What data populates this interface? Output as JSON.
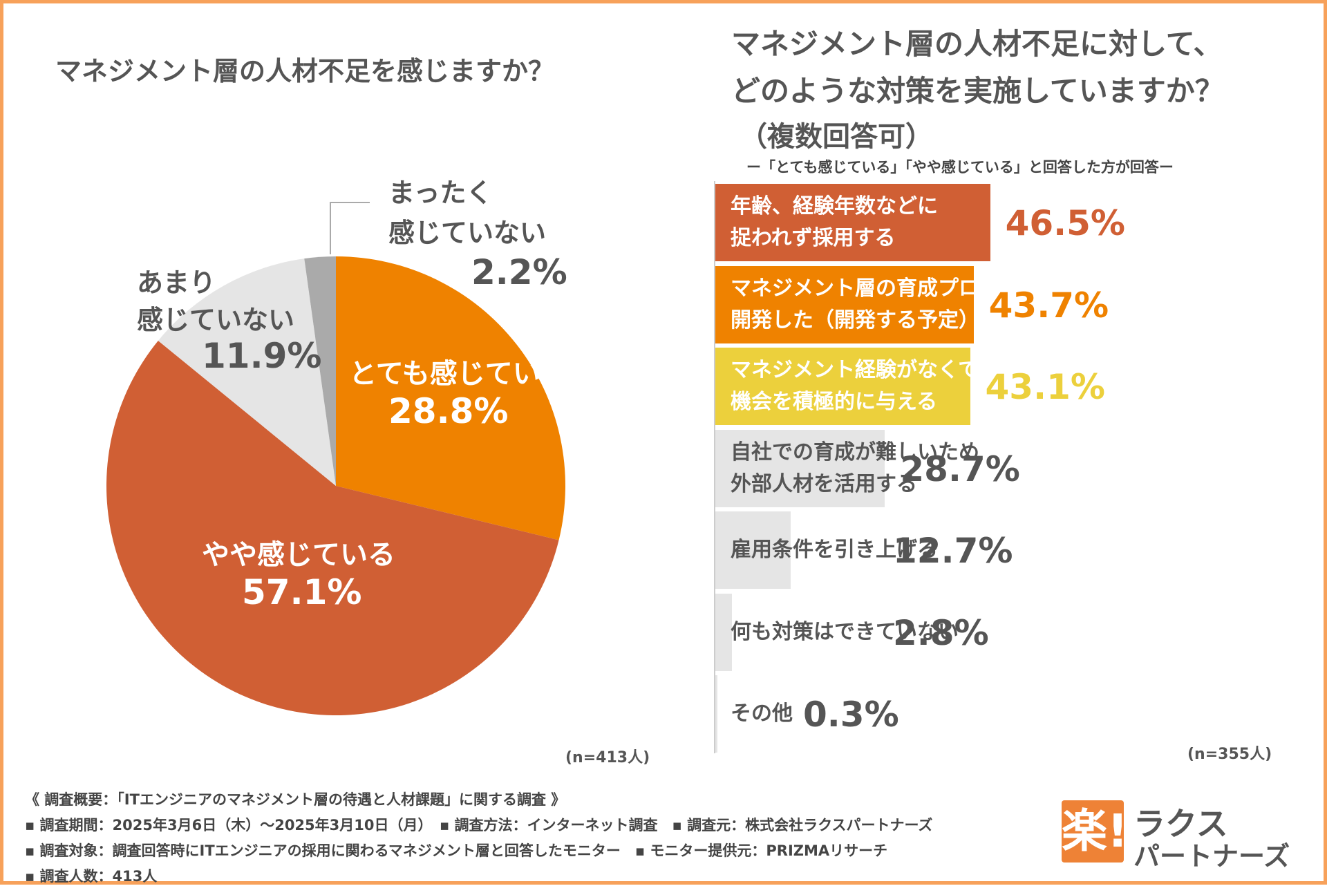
{
  "left": {
    "title": "マネジメント層の人材不足を感じますか？",
    "n_label": "(n=413人)"
  },
  "right": {
    "title_line1": "マネジメント層の人材不足に対して、",
    "title_line2": "どのような対策を実施していますか？",
    "title_line3": "（複数回答可）",
    "subtitle": "ー「とても感じている」「やや感じている」と回答した方が回答ー",
    "n_label": "(n=355人)"
  },
  "chart_data": [
    {
      "type": "pie",
      "title": "マネジメント層の人材不足を感じますか？",
      "slices": [
        {
          "label": "とても感じている",
          "value": 28.8,
          "value_label": "28.8%",
          "color": "#ef8200"
        },
        {
          "label": "やや感じている",
          "value": 57.1,
          "value_label": "57.1%",
          "color": "#d05f34"
        },
        {
          "label_line1": "あまり",
          "label_line2": "感じていない",
          "value": 11.9,
          "value_label": "11.9%",
          "color": "#e5e5e5"
        },
        {
          "label_line1": "まったく",
          "label_line2": "感じていない",
          "value": 2.2,
          "value_label": "2.2%",
          "color": "#aaaaaa"
        }
      ]
    },
    {
      "type": "bar",
      "orientation": "horizontal",
      "title": "マネジメント層の人材不足に対して、どのような対策を実施していますか？（複数回答可）",
      "bars": [
        {
          "label": "年齢、経験年数などに\n捉われず採用する",
          "value": 46.5,
          "value_label": "46.5%",
          "color": "#d05f34",
          "text_color": "#ffffff"
        },
        {
          "label": "マネジメント層の育成プログラムを\n開発した（開発する予定）",
          "value": 43.7,
          "value_label": "43.7%",
          "color": "#ef8200",
          "text_color": "#ffffff"
        },
        {
          "label": "マネジメント経験がなくても、\n機会を積極的に与える",
          "value": 43.1,
          "value_label": "43.1%",
          "color": "#ecd03c",
          "text_color": "#ffffff"
        },
        {
          "label": "自社での育成が難しいため\n外部人材を活用する",
          "value": 28.7,
          "value_label": "28.7%",
          "color": "#e5e5e5",
          "text_color": "#555555"
        },
        {
          "label": "雇用条件を引き上げる",
          "value": 12.7,
          "value_label": "12.7%",
          "color": "#e5e5e5",
          "text_color": "#555555"
        },
        {
          "label": "何も対策はできていない",
          "value": 2.8,
          "value_label": "2.8%",
          "color": "#e5e5e5",
          "text_color": "#555555"
        },
        {
          "label": "その他",
          "value": 0.3,
          "value_label": "0.3%",
          "color": "#e5e5e5",
          "text_color": "#555555"
        }
      ]
    }
  ],
  "footer": {
    "line1": "《 調査概要：「ITエンジニアのマネジメント層の待遇と人材課題」に関する調査 》",
    "line2": "▪ 調査期間：2025年3月6日（木）〜2025年3月10日（月）　▪ 調査方法：インターネット調査　▪ 調査元：株式会社ラクスパートナーズ",
    "line3": "▪ 調査対象：調査回答時にITエンジニアの採用に関わるマネジメント層と回答したモニター　▪ モニター提供元：PRIZMAリサーチ",
    "line4": "▪ 調査人数：413人"
  },
  "logo": {
    "mark": "楽!",
    "name_line1": "ラクス",
    "name_line2": "パートナーズ"
  },
  "colors": {
    "border": "#f7a15a",
    "accent": "#ee8236"
  }
}
